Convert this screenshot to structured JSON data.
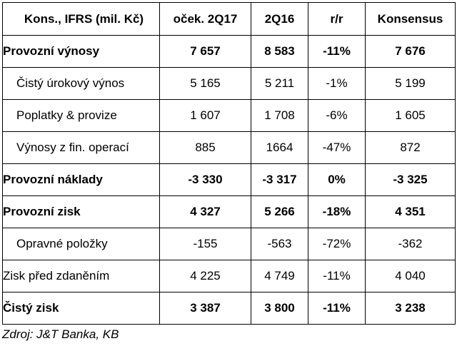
{
  "table": {
    "headers": [
      "Kons., IFRS (mil. Kč)",
      "oček. 2Q17",
      "2Q16",
      "r/r",
      "Konsensus"
    ],
    "rows": [
      {
        "label": "Provozní výnosy",
        "values": [
          "7 657",
          "8 583",
          "-11%",
          "7 676"
        ],
        "bold": true,
        "indent": false
      },
      {
        "label": "Čistý úrokový výnos",
        "values": [
          "5 165",
          "5 211",
          "-1%",
          "5 199"
        ],
        "bold": false,
        "indent": true
      },
      {
        "label": "Poplatky & provize",
        "values": [
          "1 607",
          "1 708",
          "-6%",
          "1 605"
        ],
        "bold": false,
        "indent": true
      },
      {
        "label": "Výnosy z fin. operací",
        "values": [
          "885",
          "1664",
          "-47%",
          "872"
        ],
        "bold": false,
        "indent": true
      },
      {
        "label": "Provozní náklady",
        "values": [
          "-3 330",
          "-3 317",
          "0%",
          "-3 325"
        ],
        "bold": true,
        "indent": false
      },
      {
        "label": "Provozní zisk",
        "values": [
          "4 327",
          "5 266",
          "-18%",
          "4 351"
        ],
        "bold": true,
        "indent": false
      },
      {
        "label": "Opravné položky",
        "values": [
          "-155",
          "-563",
          "-72%",
          "-362"
        ],
        "bold": false,
        "indent": true
      },
      {
        "label": "Zisk před zdaněním",
        "values": [
          "4 225",
          "4 749",
          "-11%",
          "4 040"
        ],
        "bold": false,
        "indent": false
      },
      {
        "label": "Čistý zisk",
        "values": [
          "3 387",
          "3 800",
          "-11%",
          "3 238"
        ],
        "bold": true,
        "indent": false
      }
    ]
  },
  "source": "Zdroj: J&T Banka, KB"
}
